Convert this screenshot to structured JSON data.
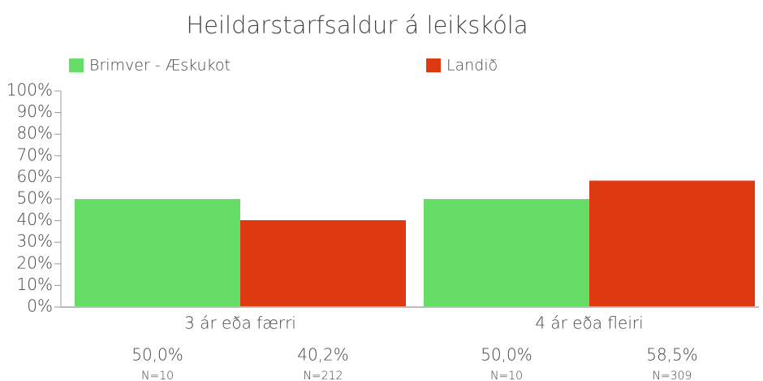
{
  "chart_data": {
    "type": "bar",
    "title": "Heildarstarfsaldur á leikskóla",
    "categories": [
      "3 ár eða færri",
      "4 ár eða fleiri"
    ],
    "series": [
      {
        "name": "Brimver - Æskukot",
        "color": "#66dd66",
        "values": [
          50.0,
          50.0
        ],
        "value_labels": [
          "50,0%",
          "50,0%"
        ],
        "n_labels": [
          "N=10",
          "N=10"
        ]
      },
      {
        "name": "Landið",
        "color": "#dd3a12",
        "values": [
          40.2,
          58.5
        ],
        "value_labels": [
          "40,2%",
          "58,5%"
        ],
        "n_labels": [
          "N=212",
          "N=309"
        ]
      }
    ],
    "ylim": [
      0,
      100
    ],
    "yticks": [
      {
        "value": 0,
        "label": "0%"
      },
      {
        "value": 10,
        "label": "10%"
      },
      {
        "value": 20,
        "label": "20%"
      },
      {
        "value": 30,
        "label": "30%"
      },
      {
        "value": 40,
        "label": "40%"
      },
      {
        "value": 50,
        "label": "50%"
      },
      {
        "value": 60,
        "label": "60%"
      },
      {
        "value": 70,
        "label": "70%"
      },
      {
        "value": 80,
        "label": "80%"
      },
      {
        "value": 90,
        "label": "90%"
      },
      {
        "value": 100,
        "label": "100%"
      }
    ],
    "legend": "top",
    "grid": false
  }
}
